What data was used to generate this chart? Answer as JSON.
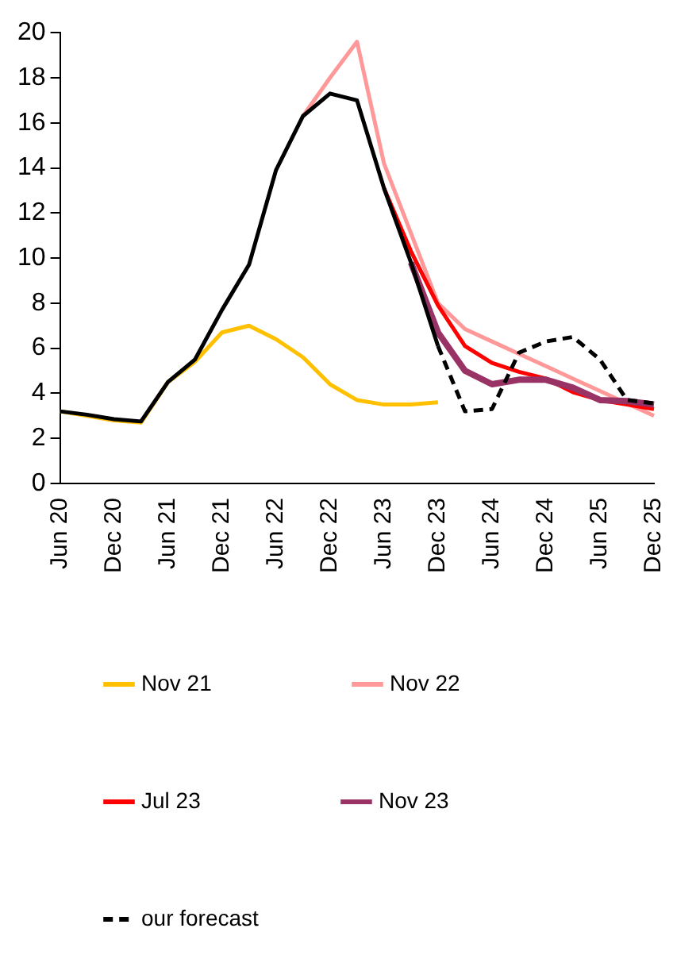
{
  "chart_data": {
    "type": "line",
    "categories": [
      "Jun 20",
      null,
      "Dec 20",
      null,
      "Jun 21",
      null,
      "Dec 21",
      null,
      "Jun 22",
      null,
      "Dec 22",
      null,
      "Jun 23",
      null,
      "Dec 23",
      null,
      "Jun 24",
      null,
      "Dec 24",
      null,
      "Jun 25",
      null,
      "Dec 25"
    ],
    "series": [
      {
        "name": "Nov 21",
        "color": "#ffc000",
        "values": [
          3.2,
          3.0,
          2.8,
          2.7,
          4.5,
          5.4,
          6.7,
          7.0,
          6.4,
          5.6,
          4.4,
          3.7,
          3.5,
          3.5,
          3.6,
          null,
          null,
          null,
          null,
          null,
          null,
          null,
          null
        ]
      },
      {
        "name": "Nov 22",
        "color": "#ff9999",
        "values": [
          null,
          null,
          null,
          null,
          null,
          null,
          null,
          null,
          null,
          16.3,
          18.0,
          19.6,
          14.2,
          11.1,
          8.0,
          6.85,
          6.3,
          5.75,
          5.2,
          4.65,
          4.1,
          3.55,
          3.0
        ]
      },
      {
        "name": "Jul 23",
        "color": "#ff0000",
        "values": [
          null,
          null,
          null,
          null,
          null,
          null,
          null,
          null,
          null,
          null,
          null,
          null,
          13.1,
          10.3,
          7.9,
          6.1,
          5.35,
          4.95,
          4.65,
          4.05,
          3.7,
          3.5,
          3.3
        ]
      },
      {
        "name": "Nov 23",
        "color": "#993366",
        "values": [
          null,
          null,
          null,
          null,
          null,
          null,
          null,
          null,
          null,
          null,
          null,
          null,
          null,
          9.8,
          6.7,
          5.0,
          4.4,
          4.6,
          4.6,
          4.25,
          3.7,
          3.65,
          3.5
        ]
      },
      {
        "color": "#000000",
        "values": [
          3.2,
          3.05,
          2.85,
          2.75,
          4.5,
          5.5,
          7.7,
          9.7,
          13.9,
          16.3,
          17.3,
          17.0,
          13.1,
          9.8,
          6.1,
          null,
          null,
          null,
          null,
          null,
          null,
          null,
          null
        ]
      },
      {
        "name": "our forecast",
        "color": "#000000",
        "line_style": "dashed",
        "values": [
          null,
          null,
          null,
          null,
          null,
          null,
          null,
          null,
          null,
          null,
          null,
          null,
          null,
          null,
          6.1,
          3.2,
          3.3,
          5.8,
          6.3,
          6.5,
          5.5,
          3.7,
          3.55
        ]
      }
    ],
    "ylim": [
      0,
      20
    ],
    "yticks": [
      0,
      2,
      4,
      6,
      8,
      10,
      12,
      14,
      16,
      18,
      20
    ],
    "grid": false,
    "legend": "bottom",
    "marker": "none",
    "line_style": "solid"
  }
}
